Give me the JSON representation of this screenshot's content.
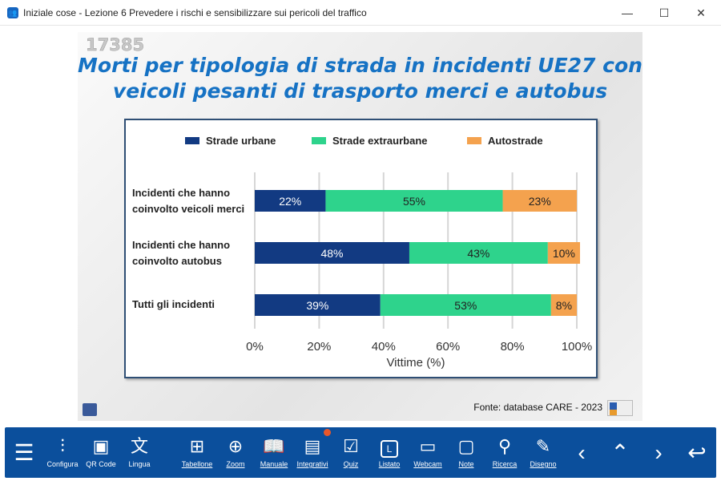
{
  "window": {
    "title": "Iniziale cose - Lezione 6 Prevedere i rischi e sensibilizzare sui pericoli del traffico",
    "controls": [
      "minimize",
      "maximize",
      "close"
    ]
  },
  "slide": {
    "code": "17385",
    "title_line1": "Morti per tipologia di strada in incidenti UE27 con",
    "title_line2": "veicoli pesanti di trasporto merci e autobus",
    "source": "Fonte: database CARE - 2023"
  },
  "chart_data": {
    "type": "bar",
    "orientation": "horizontal",
    "stacked": true,
    "categories": [
      "Incidenti che hanno coinvolto veicoli merci",
      "Incidenti che hanno coinvolto autobus",
      "Tutti gli incidenti"
    ],
    "category_lines": [
      [
        "Incidenti che hanno",
        "coinvolto veicoli merci"
      ],
      [
        "Incidenti che hanno",
        "coinvolto autobus"
      ],
      [
        "Tutti gli incidenti"
      ]
    ],
    "series": [
      {
        "name": "Strade urbane",
        "values": [
          22,
          48,
          39
        ],
        "labels": [
          "22%",
          "48%",
          "39%"
        ],
        "color": "#123a82"
      },
      {
        "name": "Strade extraurbane",
        "values": [
          55,
          43,
          53
        ],
        "labels": [
          "55%",
          "43%",
          "53%"
        ],
        "color": "#2ed38c"
      },
      {
        "name": "Autostrade",
        "values": [
          23,
          10,
          8
        ],
        "labels": [
          "23%",
          "10%",
          "8%"
        ],
        "color": "#f4a24e"
      }
    ],
    "xlabel": "Vittime (%)",
    "xlim": [
      0,
      100
    ],
    "xticks": [
      "0%",
      "20%",
      "40%",
      "60%",
      "80%",
      "100%"
    ],
    "grid": "vertical",
    "legend": "top"
  },
  "toolbar": {
    "accent": "#0b4f9c",
    "items": [
      {
        "icon": "menu-icon",
        "label": ""
      },
      {
        "icon": "sliders-icon",
        "label": "Configura"
      },
      {
        "icon": "qr-code-icon",
        "label": "QR Code"
      },
      {
        "icon": "translate-icon",
        "label": "Lingua"
      },
      {
        "icon": "grid-icon",
        "label": "Tabellone"
      },
      {
        "icon": "zoom-icon",
        "label": "Zoom"
      },
      {
        "icon": "book-icon",
        "label": "Manuale"
      },
      {
        "icon": "images-icon",
        "label": "Integrativi"
      },
      {
        "icon": "quiz-icon",
        "label": "Quiz"
      },
      {
        "icon": "list-icon",
        "label": "Listato"
      },
      {
        "icon": "webcam-icon",
        "label": "Webcam"
      },
      {
        "icon": "note-icon",
        "label": "Note"
      },
      {
        "icon": "search-icon",
        "label": "Ricerca"
      },
      {
        "icon": "pen-icon",
        "label": "Disegno"
      },
      {
        "icon": "chevron-left-icon",
        "label": ""
      },
      {
        "icon": "chevron-updown-icon",
        "label": ""
      },
      {
        "icon": "chevron-right-icon",
        "label": ""
      },
      {
        "icon": "return-icon",
        "label": ""
      }
    ]
  }
}
